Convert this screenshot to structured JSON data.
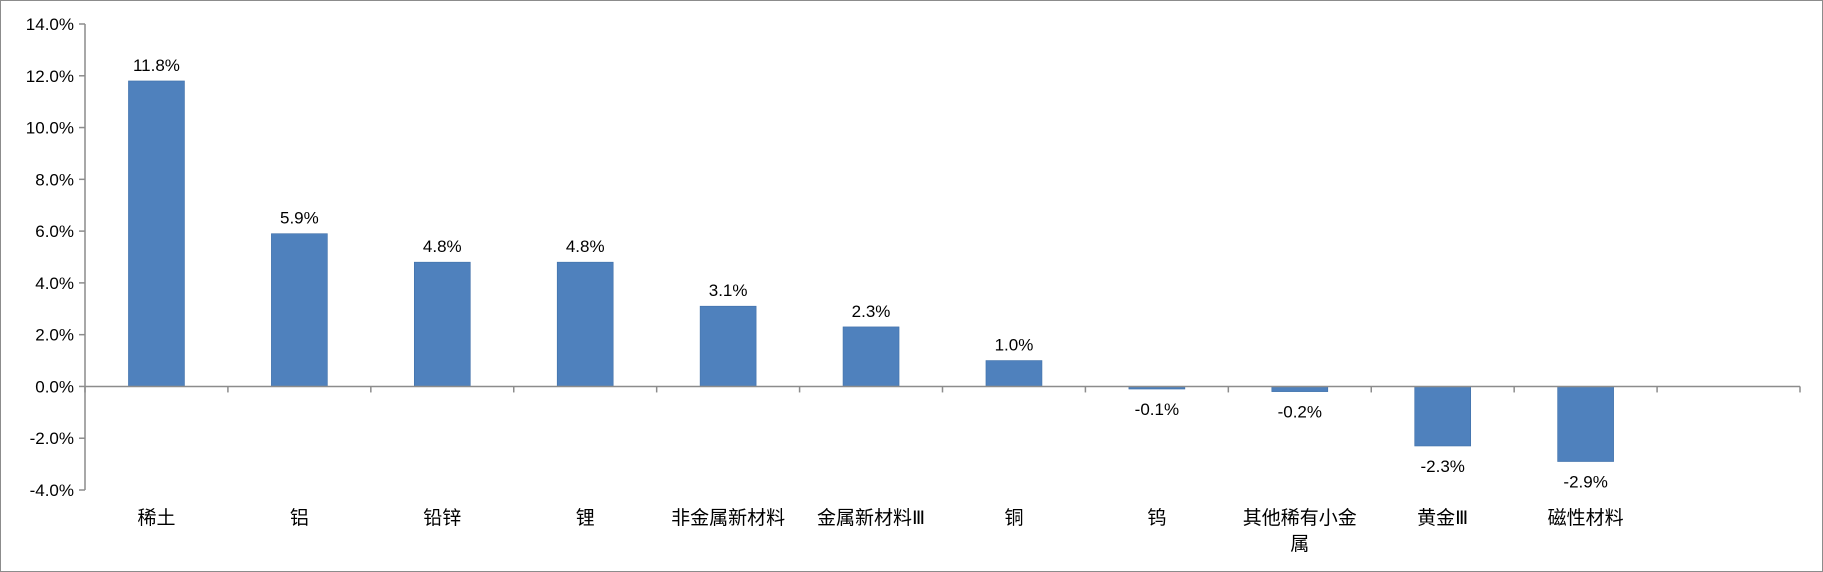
{
  "chart_data": {
    "type": "bar",
    "title": "",
    "xlabel": "",
    "ylabel": "",
    "categories": [
      "稀土",
      "铝",
      "铅锌",
      "锂",
      "非金属新材料",
      "金属新材料Ⅲ",
      "铜",
      "钨",
      "其他稀有小金属",
      "黄金Ⅲ",
      "磁性材料",
      ""
    ],
    "category_lines": [
      [
        "稀土"
      ],
      [
        "铝"
      ],
      [
        "铅锌"
      ],
      [
        "锂"
      ],
      [
        "非金属新材料"
      ],
      [
        "金属新材料Ⅲ"
      ],
      [
        "铜"
      ],
      [
        "钨"
      ],
      [
        "其他稀有小金",
        "属"
      ],
      [
        "黄金Ⅲ"
      ],
      [
        "磁性材料"
      ],
      []
    ],
    "values": [
      11.8,
      5.9,
      4.8,
      4.8,
      3.1,
      2.3,
      1.0,
      -0.1,
      -0.2,
      -2.3,
      -2.9,
      null
    ],
    "data_labels": [
      "11.8%",
      "5.9%",
      "4.8%",
      "4.8%",
      "3.1%",
      "2.3%",
      "1.0%",
      "-0.1%",
      "-0.2%",
      "-2.3%",
      "-2.9%",
      ""
    ],
    "ylim": [
      -4.0,
      14.0
    ],
    "yticks": [
      -4.0,
      -2.0,
      0.0,
      2.0,
      4.0,
      6.0,
      8.0,
      10.0,
      12.0,
      14.0
    ],
    "ytick_labels": [
      "-4.0%",
      "-2.0%",
      "0.0%",
      "2.0%",
      "4.0%",
      "6.0%",
      "8.0%",
      "10.0%",
      "12.0%",
      "14.0%"
    ],
    "grid": false,
    "legend": "none",
    "bar_color": "#4f81bd",
    "axis_color": "#8c8c8c"
  }
}
